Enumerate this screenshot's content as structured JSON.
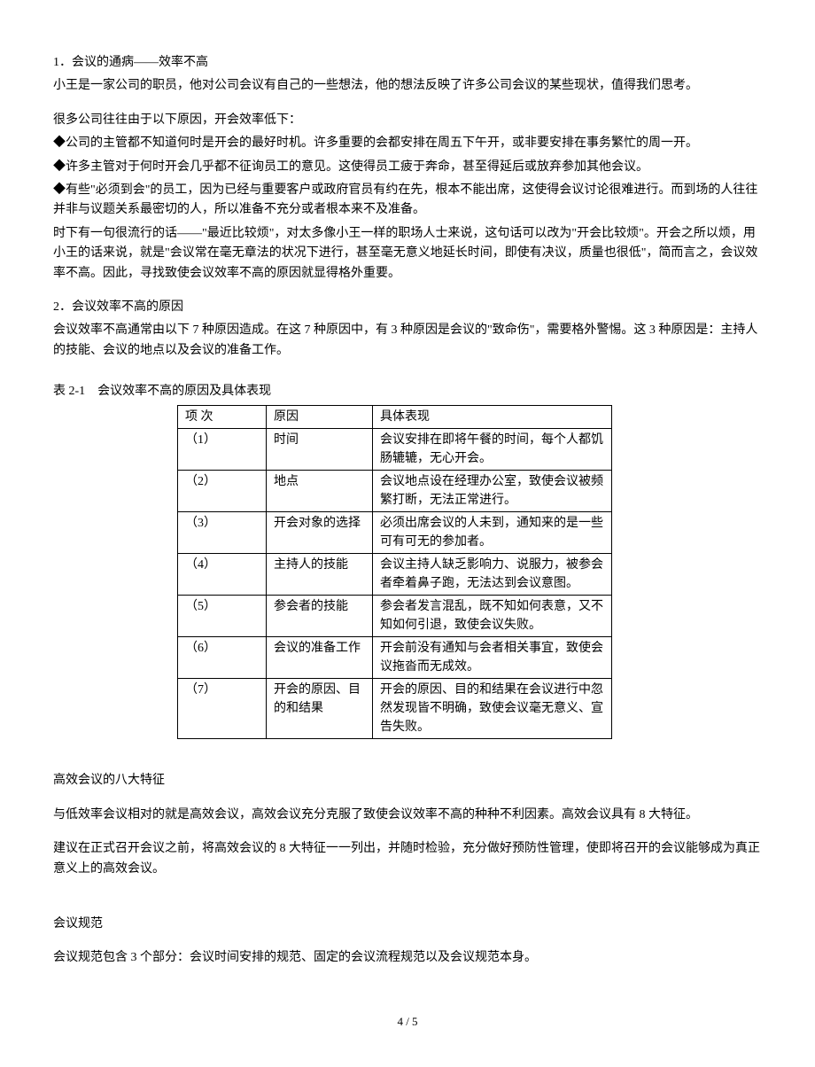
{
  "section1": {
    "heading": "1．会议的通病——效率不高",
    "p1": "小王是一家公司的职员，他对公司会议有自己的一些想法，他的想法反映了许多公司会议的某些现状，值得我们思考。",
    "p2": "很多公司往往由于以下原因，开会效率低下：",
    "b1": "◆公司的主管都不知道何时是开会的最好时机。许多重要的会都安排在周五下午开，或非要安排在事务繁忙的周一开。",
    "b2": "◆许多主管对于何时开会几乎都不征询员工的意见。这使得员工疲于奔命，甚至得延后或放弃参加其他会议。",
    "b3": "◆有些\"必须到会\"的员工，因为已经与重要客户或政府官员有约在先，根本不能出席，这使得会议讨论很难进行。而到场的人往往并非与议题关系最密切的人，所以准备不充分或者根本来不及准备。",
    "p3": "时下有一句很流行的话——\"最近比较烦\"，对太多像小王一样的职场人士来说，这句话可以改为\"开会比较烦\"。开会之所以烦，用小王的话来说，就是\"会议常在毫无章法的状况下进行，甚至毫无意义地延长时间，即使有决议，质量也很低\"，简而言之，会议效率不高。因此，寻找致使会议效率不高的原因就显得格外重要。"
  },
  "section2": {
    "heading": "2．会议效率不高的原因",
    "p1": "会议效率不高通常由以下 7 种原因造成。在这 7 种原因中，有 3 种原因是会议的\"致命伤\"，需要格外警惕。这 3 种原因是：主持人的技能、会议的地点以及会议的准备工作。"
  },
  "table": {
    "caption": "表 2-1　会议效率不高的原因及具体表现",
    "headers": [
      "项 次",
      "原因",
      "具体表现"
    ],
    "rows": [
      [
        "（1）",
        "时间",
        "会议安排在即将午餐的时间，每个人都饥肠辘辘，无心开会。"
      ],
      [
        "（2）",
        "地点",
        "会议地点设在经理办公室，致使会议被频繁打断，无法正常进行。"
      ],
      [
        "（3）",
        "开会对象的选择",
        "必须出席会议的人未到，通知来的是一些可有可无的参加者。"
      ],
      [
        "（4）",
        "主持人的技能",
        "会议主持人缺乏影响力、说服力，被参会者牵着鼻子跑，无法达到会议意图。"
      ],
      [
        "（5）",
        "参会者的技能",
        "参会者发言混乱，既不知如何表意，又不知如何引退，致使会议失败。"
      ],
      [
        "（6）",
        "会议的准备工作",
        "开会前没有通知与会者相关事宜，致使会议拖沓而无成效。"
      ],
      [
        "（7）",
        "开会的原因、目的和结果",
        "开会的原因、目的和结果在会议进行中忽然发现皆不明确，致使会议毫无意义、宣告失败。"
      ]
    ]
  },
  "section3": {
    "heading": "高效会议的八大特征",
    "p1": "与低效率会议相对的就是高效会议，高效会议充分克服了致使会议效率不高的种种不利因素。高效会议具有 8 大特征。",
    "p2": "建议在正式召开会议之前，将高效会议的 8 大特征一一列出，并随时检验，充分做好预防性管理，使即将召开的会议能够成为真正意义上的高效会议。"
  },
  "section4": {
    "heading": "会议规范",
    "p1": "会议规范包含 3 个部分：会议时间安排的规范、固定的会议流程规范以及会议规范本身。"
  },
  "pagenum": "4 / 5"
}
